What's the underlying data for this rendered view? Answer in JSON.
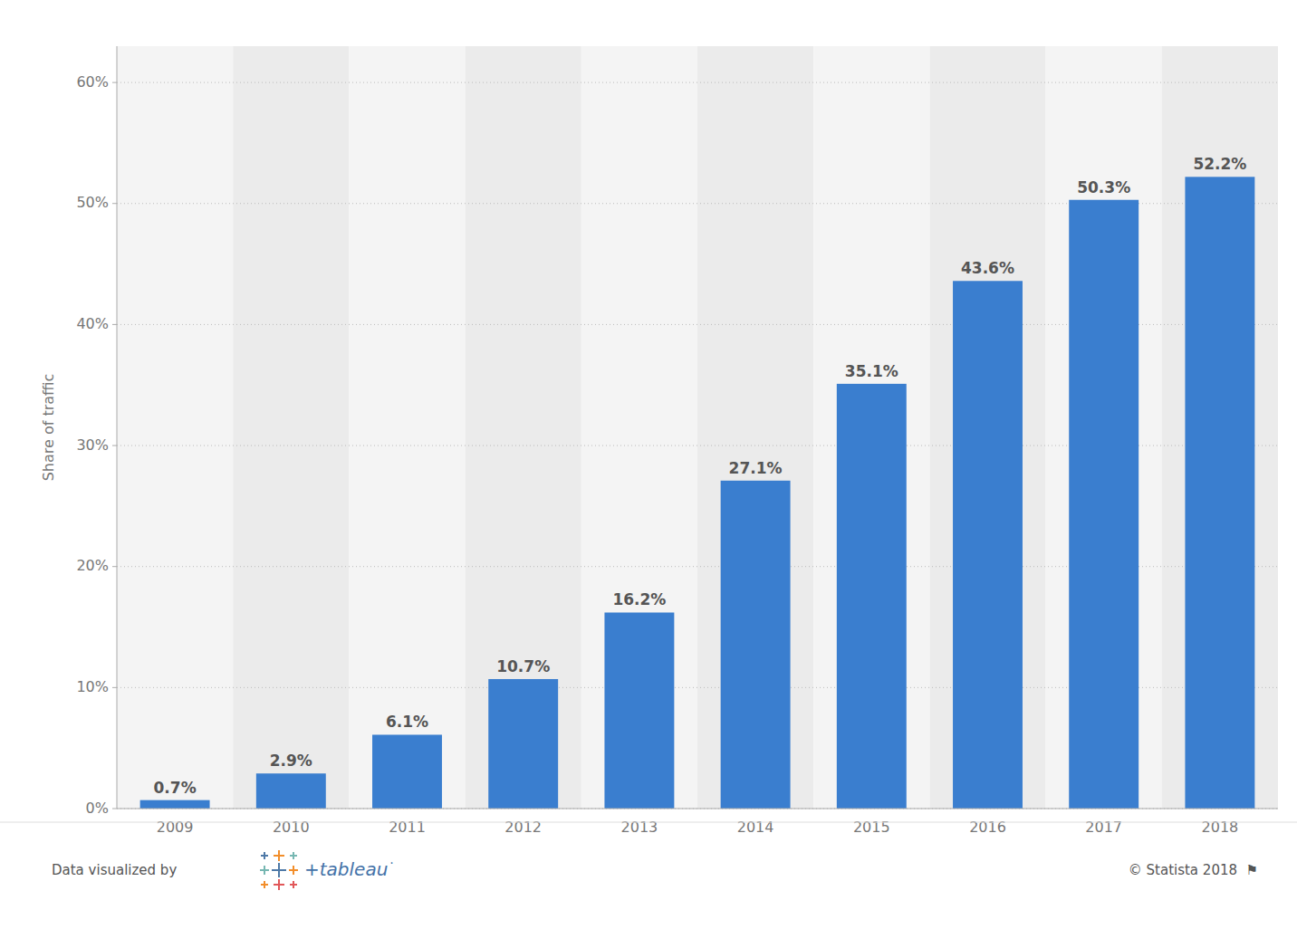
{
  "chart_data": {
    "type": "bar",
    "y_label": "Share of traffic",
    "categories": [
      "2009",
      "2010",
      "2011",
      "2012",
      "2013",
      "2014",
      "2015",
      "2016",
      "2017",
      "2018"
    ],
    "values": [
      0.7,
      2.9,
      6.1,
      10.7,
      16.2,
      27.1,
      35.1,
      43.6,
      50.3,
      52.2
    ],
    "value_labels": [
      "0.7%",
      "2.9%",
      "6.1%",
      "10.7%",
      "16.2%",
      "27.1%",
      "35.1%",
      "43.6%",
      "50.3%",
      "52.2%"
    ],
    "color": "#3a7ecf",
    "ylim": [
      0,
      63
    ],
    "yticks": [
      {
        "value": 0,
        "label": "0%"
      },
      {
        "value": 10,
        "label": "10%"
      },
      {
        "value": 20,
        "label": "20%"
      },
      {
        "value": 30,
        "label": "30%"
      },
      {
        "value": 40,
        "label": "40%"
      },
      {
        "value": 50,
        "label": "50%"
      },
      {
        "value": 60,
        "label": "60%"
      }
    ],
    "grid": true,
    "data_labels": true,
    "annotations": [
      "Data visualized by",
      "+tableau",
      "·",
      "© Statista 2018  ⚑"
    ]
  }
}
